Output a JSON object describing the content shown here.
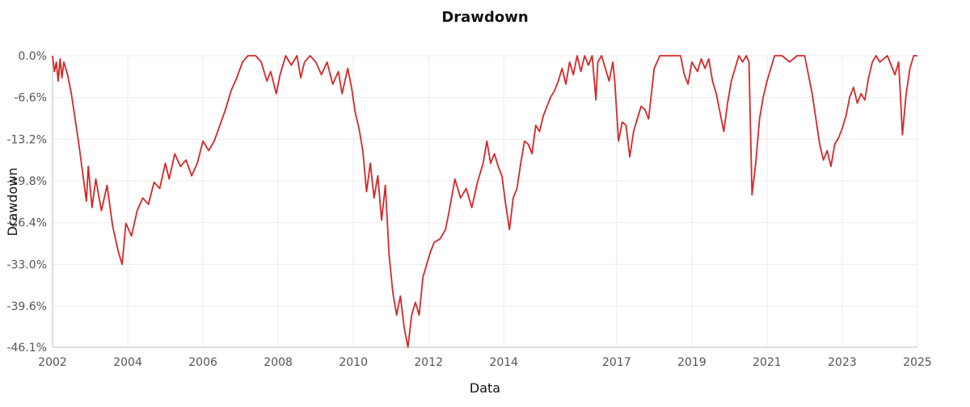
{
  "chart_data": {
    "type": "line",
    "title": "Drawdown",
    "xlabel": "Data",
    "ylabel": "Drawdown",
    "xlim": [
      2002.0,
      2025.0
    ],
    "ylim": [
      -46.1,
      0.0
    ],
    "x_ticks": [
      2002,
      2004,
      2006,
      2008,
      2010,
      2012,
      2014,
      2017,
      2019,
      2021,
      2023,
      2025
    ],
    "x_tick_labels": [
      "2002",
      "2004",
      "2006",
      "2008",
      "2010",
      "2012",
      "2014",
      "2017",
      "2019",
      "2021",
      "2023",
      "2025"
    ],
    "y_ticks": [
      0.0,
      -6.6,
      -13.2,
      -19.8,
      -26.4,
      -33.0,
      -39.6,
      -46.1
    ],
    "y_tick_labels": [
      "0.0%",
      "-6.6%",
      "-13.2%",
      "-19.8%",
      "-26.4%",
      "-33.0%",
      "-39.6%",
      "-46.1%"
    ],
    "grid": true,
    "legend": "none",
    "line_color": "#d62728",
    "series": [
      {
        "values": [
          [
            2002.0,
            0.0
          ],
          [
            2002.05,
            -2.5
          ],
          [
            2002.1,
            -1.0
          ],
          [
            2002.15,
            -4.0
          ],
          [
            2002.2,
            -0.5
          ],
          [
            2002.25,
            -3.5
          ],
          [
            2002.3,
            -1.0
          ],
          [
            2002.4,
            -3.0
          ],
          [
            2002.5,
            -6.0
          ],
          [
            2002.6,
            -10.0
          ],
          [
            2002.7,
            -14.0
          ],
          [
            2002.8,
            -18.5
          ],
          [
            2002.9,
            -23.0
          ],
          [
            2002.95,
            -17.5
          ],
          [
            2003.05,
            -24.0
          ],
          [
            2003.15,
            -19.5
          ],
          [
            2003.3,
            -24.5
          ],
          [
            2003.45,
            -20.5
          ],
          [
            2003.6,
            -27.0
          ],
          [
            2003.75,
            -31.0
          ],
          [
            2003.85,
            -33.0
          ],
          [
            2003.95,
            -26.5
          ],
          [
            2004.1,
            -28.5
          ],
          [
            2004.25,
            -24.5
          ],
          [
            2004.4,
            -22.5
          ],
          [
            2004.55,
            -23.5
          ],
          [
            2004.7,
            -20.0
          ],
          [
            2004.85,
            -21.0
          ],
          [
            2005.0,
            -17.0
          ],
          [
            2005.1,
            -19.5
          ],
          [
            2005.25,
            -15.5
          ],
          [
            2005.4,
            -17.5
          ],
          [
            2005.55,
            -16.5
          ],
          [
            2005.7,
            -19.0
          ],
          [
            2005.85,
            -17.0
          ],
          [
            2006.0,
            -13.5
          ],
          [
            2006.15,
            -15.0
          ],
          [
            2006.3,
            -13.5
          ],
          [
            2006.45,
            -11.0
          ],
          [
            2006.6,
            -8.5
          ],
          [
            2006.75,
            -5.5
          ],
          [
            2006.9,
            -3.5
          ],
          [
            2007.05,
            -1.0
          ],
          [
            2007.2,
            0.0
          ],
          [
            2007.4,
            0.0
          ],
          [
            2007.55,
            -1.0
          ],
          [
            2007.7,
            -4.0
          ],
          [
            2007.8,
            -2.5
          ],
          [
            2007.95,
            -6.0
          ],
          [
            2008.05,
            -3.0
          ],
          [
            2008.2,
            0.0
          ],
          [
            2008.35,
            -1.5
          ],
          [
            2008.5,
            0.0
          ],
          [
            2008.6,
            -3.5
          ],
          [
            2008.7,
            -1.0
          ],
          [
            2008.85,
            0.0
          ],
          [
            2009.0,
            -1.0
          ],
          [
            2009.15,
            -3.0
          ],
          [
            2009.3,
            -1.0
          ],
          [
            2009.45,
            -4.5
          ],
          [
            2009.6,
            -2.5
          ],
          [
            2009.7,
            -6.0
          ],
          [
            2009.85,
            -2.0
          ],
          [
            2009.95,
            -5.0
          ],
          [
            2010.05,
            -9.0
          ],
          [
            2010.15,
            -11.5
          ],
          [
            2010.25,
            -15.0
          ],
          [
            2010.35,
            -21.5
          ],
          [
            2010.45,
            -17.0
          ],
          [
            2010.55,
            -22.5
          ],
          [
            2010.65,
            -19.0
          ],
          [
            2010.75,
            -26.0
          ],
          [
            2010.85,
            -20.5
          ],
          [
            2010.95,
            -31.5
          ],
          [
            2011.05,
            -37.5
          ],
          [
            2011.15,
            -41.0
          ],
          [
            2011.25,
            -38.0
          ],
          [
            2011.35,
            -43.0
          ],
          [
            2011.45,
            -46.1
          ],
          [
            2011.55,
            -41.0
          ],
          [
            2011.65,
            -39.0
          ],
          [
            2011.75,
            -41.0
          ],
          [
            2011.85,
            -35.0
          ],
          [
            2011.95,
            -33.0
          ],
          [
            2012.05,
            -31.0
          ],
          [
            2012.15,
            -29.5
          ],
          [
            2012.3,
            -29.0
          ],
          [
            2012.45,
            -27.5
          ],
          [
            2012.55,
            -24.5
          ],
          [
            2012.7,
            -19.5
          ],
          [
            2012.85,
            -22.5
          ],
          [
            2013.0,
            -21.0
          ],
          [
            2013.15,
            -24.0
          ],
          [
            2013.3,
            -20.0
          ],
          [
            2013.45,
            -17.0
          ],
          [
            2013.55,
            -13.5
          ],
          [
            2013.65,
            -17.0
          ],
          [
            2013.75,
            -15.5
          ],
          [
            2013.85,
            -17.5
          ],
          [
            2013.95,
            -19.0
          ],
          [
            2014.05,
            -23.5
          ],
          [
            2014.15,
            -27.5
          ],
          [
            2014.25,
            -22.5
          ],
          [
            2014.35,
            -21.0
          ],
          [
            2014.45,
            -17.0
          ],
          [
            2014.55,
            -13.5
          ],
          [
            2014.65,
            -14.0
          ],
          [
            2014.75,
            -15.5
          ],
          [
            2014.85,
            -11.0
          ],
          [
            2014.95,
            -12.0
          ],
          [
            2015.05,
            -9.5
          ],
          [
            2015.15,
            -8.0
          ],
          [
            2015.25,
            -6.5
          ],
          [
            2015.35,
            -5.5
          ],
          [
            2015.45,
            -4.0
          ],
          [
            2015.55,
            -2.0
          ],
          [
            2015.65,
            -4.5
          ],
          [
            2015.75,
            -1.0
          ],
          [
            2015.85,
            -3.0
          ],
          [
            2015.95,
            0.0
          ],
          [
            2016.05,
            -2.5
          ],
          [
            2016.15,
            0.0
          ],
          [
            2016.25,
            -1.5
          ],
          [
            2016.35,
            0.0
          ],
          [
            2016.45,
            -7.0
          ],
          [
            2016.5,
            -1.0
          ],
          [
            2016.6,
            0.0
          ],
          [
            2016.7,
            -2.0
          ],
          [
            2016.8,
            -4.0
          ],
          [
            2016.9,
            -1.0
          ],
          [
            2016.95,
            -4.0
          ],
          [
            2017.05,
            -13.5
          ],
          [
            2017.15,
            -10.5
          ],
          [
            2017.25,
            -11.0
          ],
          [
            2017.35,
            -16.0
          ],
          [
            2017.45,
            -12.0
          ],
          [
            2017.55,
            -10.0
          ],
          [
            2017.65,
            -8.0
          ],
          [
            2017.75,
            -8.5
          ],
          [
            2017.85,
            -10.0
          ],
          [
            2018.0,
            -2.0
          ],
          [
            2018.15,
            0.0
          ],
          [
            2018.4,
            0.0
          ],
          [
            2018.55,
            0.0
          ],
          [
            2018.7,
            0.0
          ],
          [
            2018.8,
            -3.0
          ],
          [
            2018.9,
            -4.5
          ],
          [
            2019.0,
            -1.0
          ],
          [
            2019.15,
            -2.5
          ],
          [
            2019.25,
            -0.5
          ],
          [
            2019.35,
            -2.0
          ],
          [
            2019.45,
            -0.5
          ],
          [
            2019.55,
            -4.0
          ],
          [
            2019.65,
            -6.0
          ],
          [
            2019.75,
            -9.0
          ],
          [
            2019.85,
            -12.0
          ],
          [
            2019.95,
            -7.5
          ],
          [
            2020.05,
            -4.0
          ],
          [
            2020.15,
            -2.0
          ],
          [
            2020.25,
            0.0
          ],
          [
            2020.35,
            -1.0
          ],
          [
            2020.45,
            0.0
          ],
          [
            2020.52,
            -1.0
          ],
          [
            2020.6,
            -22.0
          ],
          [
            2020.7,
            -17.0
          ],
          [
            2020.8,
            -10.0
          ],
          [
            2020.9,
            -6.5
          ],
          [
            2021.0,
            -4.0
          ],
          [
            2021.1,
            -2.0
          ],
          [
            2021.2,
            0.0
          ],
          [
            2021.4,
            0.0
          ],
          [
            2021.6,
            -1.0
          ],
          [
            2021.8,
            0.0
          ],
          [
            2022.0,
            0.0
          ],
          [
            2022.1,
            -3.0
          ],
          [
            2022.2,
            -6.0
          ],
          [
            2022.3,
            -10.0
          ],
          [
            2022.4,
            -14.0
          ],
          [
            2022.5,
            -16.5
          ],
          [
            2022.6,
            -15.0
          ],
          [
            2022.7,
            -17.5
          ],
          [
            2022.8,
            -14.0
          ],
          [
            2022.9,
            -13.0
          ],
          [
            2023.0,
            -11.5
          ],
          [
            2023.1,
            -9.5
          ],
          [
            2023.2,
            -6.5
          ],
          [
            2023.3,
            -5.0
          ],
          [
            2023.4,
            -7.5
          ],
          [
            2023.5,
            -6.0
          ],
          [
            2023.6,
            -7.0
          ],
          [
            2023.7,
            -3.5
          ],
          [
            2023.8,
            -1.0
          ],
          [
            2023.9,
            0.0
          ],
          [
            2024.0,
            -1.0
          ],
          [
            2024.1,
            -0.5
          ],
          [
            2024.2,
            0.0
          ],
          [
            2024.3,
            -1.5
          ],
          [
            2024.4,
            -3.0
          ],
          [
            2024.5,
            -1.0
          ],
          [
            2024.6,
            -12.5
          ],
          [
            2024.7,
            -6.0
          ],
          [
            2024.8,
            -2.0
          ],
          [
            2024.9,
            0.0
          ],
          [
            2025.0,
            0.0
          ]
        ]
      }
    ]
  }
}
